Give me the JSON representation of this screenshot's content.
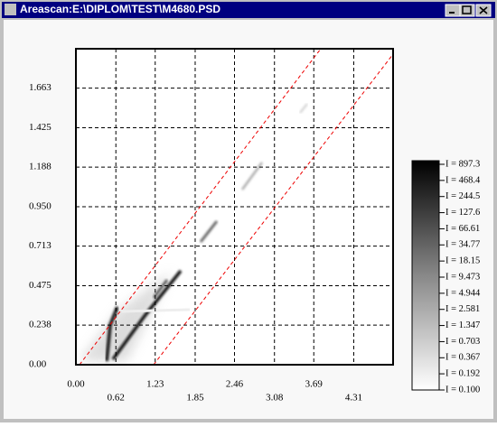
{
  "window": {
    "title": "Areascan:E:\\DIPLOM\\TEST\\M4680.PSD"
  },
  "chart_data": {
    "type": "heatmap",
    "xlim": [
      0,
      4.92
    ],
    "ylim": [
      0,
      1.9
    ],
    "xticks": [
      {
        "value": 0,
        "label": "0.00"
      },
      {
        "value": 0.62,
        "label": "0.62"
      },
      {
        "value": 1.23,
        "label": "1.23"
      },
      {
        "value": 1.85,
        "label": "1.85"
      },
      {
        "value": 2.46,
        "label": "2.46"
      },
      {
        "value": 3.08,
        "label": "3.08"
      },
      {
        "value": 3.69,
        "label": "3.69"
      },
      {
        "value": 4.31,
        "label": "4.31"
      }
    ],
    "yticks": [
      {
        "value": 0,
        "label": "0.00"
      },
      {
        "value": 0.238,
        "label": "0.238"
      },
      {
        "value": 0.475,
        "label": "0.475"
      },
      {
        "value": 0.713,
        "label": "0.713"
      },
      {
        "value": 0.95,
        "label": "0.950"
      },
      {
        "value": 1.188,
        "label": "1.188"
      },
      {
        "value": 1.425,
        "label": "1.425"
      },
      {
        "value": 1.663,
        "label": "1.663"
      }
    ],
    "grid": true,
    "colorbar": {
      "log": true,
      "lim": [
        0.1,
        897.3
      ],
      "ticks": [
        {
          "value": 897.3,
          "label": "I = 897.3"
        },
        {
          "value": 468.4,
          "label": "I = 468.4"
        },
        {
          "value": 244.5,
          "label": "I = 244.5"
        },
        {
          "value": 127.6,
          "label": "I = 127.6"
        },
        {
          "value": 66.61,
          "label": "I = 66.61"
        },
        {
          "value": 34.77,
          "label": "I = 34.77"
        },
        {
          "value": 18.15,
          "label": "I = 18.15"
        },
        {
          "value": 9.473,
          "label": "I = 9.473"
        },
        {
          "value": 4.944,
          "label": "I = 4.944"
        },
        {
          "value": 2.581,
          "label": "I = 2.581"
        },
        {
          "value": 1.347,
          "label": "I = 1.347"
        },
        {
          "value": 0.703,
          "label": "I = 0.703"
        },
        {
          "value": 0.367,
          "label": "I = 0.367"
        },
        {
          "value": 0.192,
          "label": "I = 0.192"
        },
        {
          "value": 0.1,
          "label": "I = 0.100"
        }
      ]
    }
  }
}
